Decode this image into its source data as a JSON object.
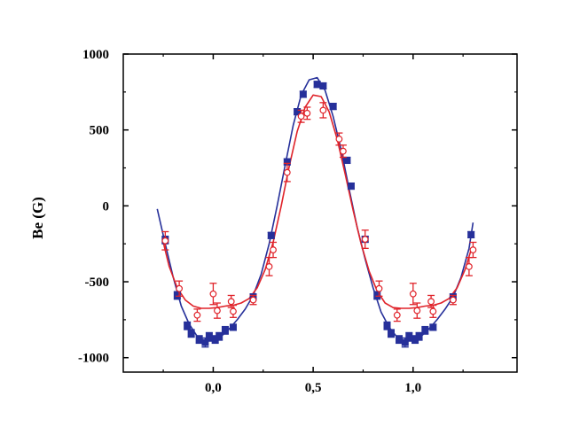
{
  "chart_data": {
    "type": "scatter",
    "title": "",
    "xlabel": "",
    "ylabel": "Be (G)",
    "xlim": [
      -0.45,
      1.52
    ],
    "ylim": [
      -1095,
      1000
    ],
    "x_ticks": [
      0.0,
      0.5,
      1.0
    ],
    "x_tick_labels": [
      "0,0",
      "0,5",
      "1,0"
    ],
    "y_ticks": [
      1000,
      500,
      0,
      -500,
      -1000
    ],
    "y_tick_labels": [
      "1000",
      "500",
      "0",
      "-500",
      "-1000"
    ],
    "grid": false,
    "legend": "none",
    "series": [
      {
        "marker": "filled-square",
        "color": "#26309a",
        "points": [
          {
            "x": -0.24,
            "y": -225,
            "err": 25
          },
          {
            "x": -0.18,
            "y": -590,
            "err": 25
          },
          {
            "x": -0.13,
            "y": -790,
            "err": 25
          },
          {
            "x": -0.11,
            "y": -840,
            "err": 25
          },
          {
            "x": -0.07,
            "y": -880,
            "err": 25
          },
          {
            "x": -0.04,
            "y": -900,
            "err": 30
          },
          {
            "x": -0.02,
            "y": -860,
            "err": 25
          },
          {
            "x": 0.01,
            "y": -880,
            "err": 25
          },
          {
            "x": 0.03,
            "y": -860,
            "err": 25
          },
          {
            "x": 0.06,
            "y": -820,
            "err": 25
          },
          {
            "x": 0.1,
            "y": -800,
            "err": 20
          },
          {
            "x": 0.2,
            "y": -600,
            "err": 20
          },
          {
            "x": 0.29,
            "y": -195,
            "err": 20
          },
          {
            "x": 0.37,
            "y": 290,
            "err": 20
          },
          {
            "x": 0.42,
            "y": 620,
            "err": 20
          },
          {
            "x": 0.45,
            "y": 735,
            "err": 20
          },
          {
            "x": 0.52,
            "y": 800,
            "err": 20
          },
          {
            "x": 0.55,
            "y": 790,
            "err": 20
          },
          {
            "x": 0.6,
            "y": 655,
            "err": 20
          },
          {
            "x": 0.67,
            "y": 300,
            "err": 20
          },
          {
            "x": 0.69,
            "y": 130,
            "err": 20
          },
          {
            "x": 0.76,
            "y": -220,
            "err": 20
          },
          {
            "x": 0.82,
            "y": -590,
            "err": 25
          },
          {
            "x": 0.87,
            "y": -790,
            "err": 25
          },
          {
            "x": 0.89,
            "y": -840,
            "err": 25
          },
          {
            "x": 0.93,
            "y": -880,
            "err": 25
          },
          {
            "x": 0.96,
            "y": -900,
            "err": 30
          },
          {
            "x": 0.98,
            "y": -860,
            "err": 25
          },
          {
            "x": 1.01,
            "y": -880,
            "err": 25
          },
          {
            "x": 1.03,
            "y": -860,
            "err": 25
          },
          {
            "x": 1.06,
            "y": -820,
            "err": 25
          },
          {
            "x": 1.1,
            "y": -800,
            "err": 20
          },
          {
            "x": 1.2,
            "y": -600,
            "err": 20
          },
          {
            "x": 1.29,
            "y": -190,
            "err": 20
          }
        ],
        "fit": [
          [
            -0.28,
            -20
          ],
          [
            -0.24,
            -250
          ],
          [
            -0.2,
            -470
          ],
          [
            -0.16,
            -660
          ],
          [
            -0.12,
            -780
          ],
          [
            -0.08,
            -860
          ],
          [
            -0.04,
            -890
          ],
          [
            0.0,
            -890
          ],
          [
            0.04,
            -860
          ],
          [
            0.08,
            -810
          ],
          [
            0.12,
            -750
          ],
          [
            0.16,
            -680
          ],
          [
            0.2,
            -590
          ],
          [
            0.24,
            -450
          ],
          [
            0.28,
            -250
          ],
          [
            0.32,
            0
          ],
          [
            0.36,
            270
          ],
          [
            0.4,
            530
          ],
          [
            0.44,
            730
          ],
          [
            0.48,
            830
          ],
          [
            0.52,
            845
          ],
          [
            0.56,
            760
          ],
          [
            0.6,
            590
          ],
          [
            0.64,
            370
          ],
          [
            0.68,
            110
          ],
          [
            0.72,
            -140
          ],
          [
            0.76,
            -350
          ],
          [
            0.8,
            -540
          ],
          [
            0.84,
            -700
          ],
          [
            0.88,
            -800
          ],
          [
            0.92,
            -865
          ],
          [
            0.96,
            -890
          ],
          [
            1.0,
            -890
          ],
          [
            1.04,
            -860
          ],
          [
            1.08,
            -810
          ],
          [
            1.12,
            -750
          ],
          [
            1.16,
            -680
          ],
          [
            1.2,
            -600
          ],
          [
            1.24,
            -470
          ],
          [
            1.28,
            -280
          ],
          [
            1.3,
            -110
          ]
        ]
      },
      {
        "marker": "open-circle",
        "color": "#e0232a",
        "points": [
          {
            "x": -0.24,
            "y": -230,
            "err": 60
          },
          {
            "x": -0.17,
            "y": -545,
            "err": 50
          },
          {
            "x": -0.08,
            "y": -720,
            "err": 40
          },
          {
            "x": 0.0,
            "y": -580,
            "err": 70
          },
          {
            "x": 0.02,
            "y": -690,
            "err": 50
          },
          {
            "x": 0.09,
            "y": -630,
            "err": 40
          },
          {
            "x": 0.1,
            "y": -695,
            "err": 40
          },
          {
            "x": 0.2,
            "y": -620,
            "err": 30
          },
          {
            "x": 0.28,
            "y": -400,
            "err": 60
          },
          {
            "x": 0.3,
            "y": -290,
            "err": 50
          },
          {
            "x": 0.37,
            "y": 220,
            "err": 60
          },
          {
            "x": 0.44,
            "y": 590,
            "err": 40
          },
          {
            "x": 0.47,
            "y": 610,
            "err": 40
          },
          {
            "x": 0.55,
            "y": 630,
            "err": 50
          },
          {
            "x": 0.63,
            "y": 440,
            "err": 40
          },
          {
            "x": 0.65,
            "y": 360,
            "err": 40
          },
          {
            "x": 0.76,
            "y": -220,
            "err": 60
          },
          {
            "x": 0.83,
            "y": -545,
            "err": 50
          },
          {
            "x": 0.92,
            "y": -720,
            "err": 40
          },
          {
            "x": 1.0,
            "y": -580,
            "err": 70
          },
          {
            "x": 1.02,
            "y": -690,
            "err": 50
          },
          {
            "x": 1.09,
            "y": -630,
            "err": 40
          },
          {
            "x": 1.1,
            "y": -695,
            "err": 40
          },
          {
            "x": 1.2,
            "y": -620,
            "err": 30
          },
          {
            "x": 1.28,
            "y": -400,
            "err": 60
          },
          {
            "x": 1.3,
            "y": -290,
            "err": 50
          }
        ],
        "fit": [
          [
            -0.25,
            -240
          ],
          [
            -0.22,
            -400
          ],
          [
            -0.18,
            -540
          ],
          [
            -0.14,
            -620
          ],
          [
            -0.1,
            -660
          ],
          [
            -0.06,
            -675
          ],
          [
            -0.02,
            -675
          ],
          [
            0.02,
            -670
          ],
          [
            0.06,
            -660
          ],
          [
            0.1,
            -655
          ],
          [
            0.14,
            -640
          ],
          [
            0.18,
            -610
          ],
          [
            0.22,
            -540
          ],
          [
            0.26,
            -420
          ],
          [
            0.3,
            -240
          ],
          [
            0.34,
            0
          ],
          [
            0.38,
            260
          ],
          [
            0.42,
            490
          ],
          [
            0.46,
            650
          ],
          [
            0.5,
            730
          ],
          [
            0.54,
            720
          ],
          [
            0.58,
            620
          ],
          [
            0.62,
            440
          ],
          [
            0.66,
            210
          ],
          [
            0.7,
            -30
          ],
          [
            0.74,
            -250
          ],
          [
            0.78,
            -430
          ],
          [
            0.82,
            -560
          ],
          [
            0.86,
            -640
          ],
          [
            0.9,
            -670
          ],
          [
            0.94,
            -675
          ],
          [
            0.98,
            -675
          ],
          [
            1.02,
            -670
          ],
          [
            1.06,
            -660
          ],
          [
            1.1,
            -655
          ],
          [
            1.14,
            -640
          ],
          [
            1.18,
            -610
          ],
          [
            1.22,
            -540
          ],
          [
            1.26,
            -420
          ],
          [
            1.29,
            -290
          ]
        ]
      }
    ]
  }
}
